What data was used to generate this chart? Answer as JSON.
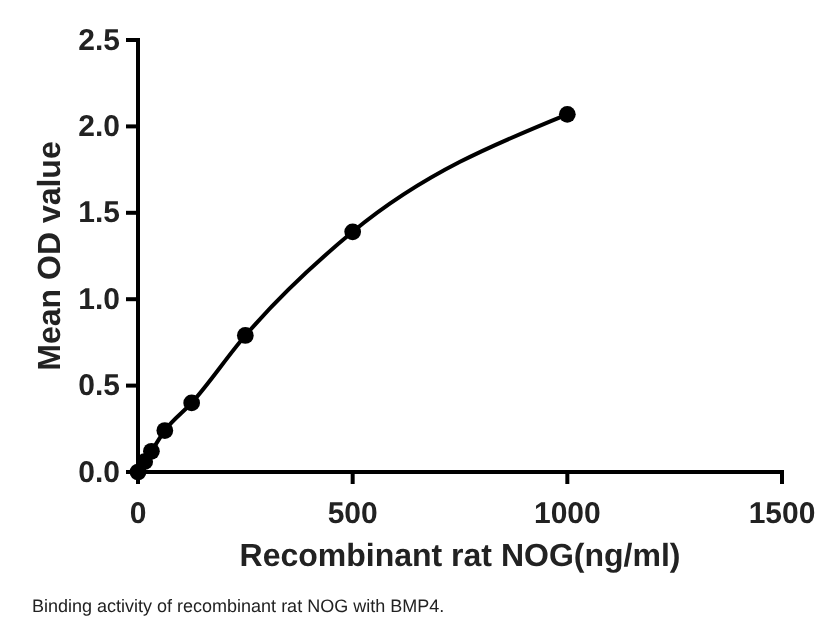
{
  "chart_data": {
    "type": "scatter",
    "xlabel": "Recombinant rat NOG(ng/ml)",
    "ylabel": "Mean OD value",
    "annotations": [
      "Binding activity of recombinant rat NOG with BMP4."
    ],
    "xlim": [
      0,
      1500
    ],
    "xticks": [
      0,
      500,
      1000,
      1500
    ],
    "ylim": [
      0,
      2.5
    ],
    "yticks": [
      {
        "value": 0,
        "label": "0.0"
      },
      {
        "value": 0.5,
        "label": "0.5"
      },
      {
        "value": 1,
        "label": "1.0"
      },
      {
        "value": 1.5,
        "label": "1.5"
      },
      {
        "value": 2,
        "label": "2.0"
      },
      {
        "value": 2.5,
        "label": "2.5"
      }
    ],
    "grid": false,
    "series": [
      {
        "color": "#000000",
        "marker": "circle",
        "x": [
          0,
          15.6,
          31.25,
          62.5,
          125,
          250,
          500,
          1000
        ],
        "values": [
          0,
          0.06,
          0.12,
          0.24,
          0.4,
          0.79,
          1.39,
          2.07
        ]
      },
      {
        "type": "line",
        "color": "#000000",
        "line_style": "solid",
        "x": [
          0,
          15.6,
          31.25,
          62.5,
          125,
          250,
          500,
          1000
        ],
        "values": [
          0,
          0.06,
          0.12,
          0.24,
          0.4,
          0.79,
          1.39,
          2.07
        ]
      }
    ]
  }
}
